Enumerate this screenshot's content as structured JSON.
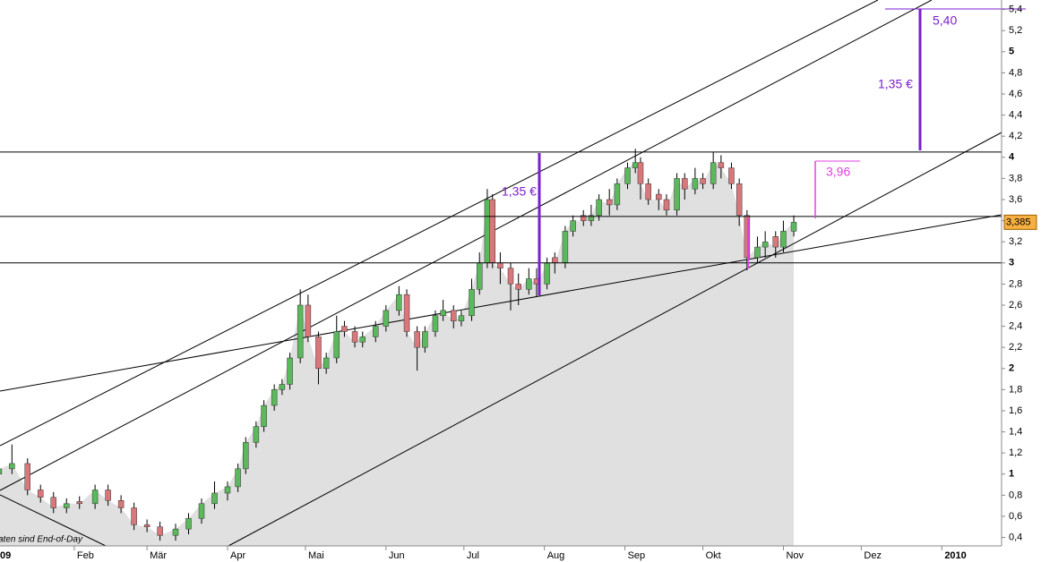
{
  "chart_data": {
    "type": "candlestick",
    "x": [
      2,
      7,
      13,
      18,
      23,
      28,
      33,
      39,
      44,
      49,
      54,
      59,
      64,
      70,
      75,
      80,
      85,
      90,
      94,
      97,
      101,
      104,
      108,
      111,
      114,
      118,
      121,
      125,
      128,
      132,
      135,
      139,
      142,
      147,
      151,
      156,
      159,
      163,
      166,
      170,
      173,
      177,
      180,
      184,
      187,
      190,
      192,
      195,
      199,
      202,
      206,
      209,
      213,
      216,
      220,
      223,
      227,
      230,
      233,
      237,
      240,
      244,
      247,
      249,
      252,
      256,
      259,
      263,
      266,
      270,
      273,
      277,
      280,
      284,
      287,
      290,
      294,
      297,
      301,
      304,
      308
    ],
    "open": [
      1.0,
      1.05,
      1.1,
      0.85,
      0.78,
      0.68,
      0.74,
      0.72,
      0.85,
      0.75,
      0.68,
      0.52,
      0.5,
      0.42,
      0.48,
      0.58,
      0.72,
      0.82,
      0.88,
      1.05,
      1.3,
      1.45,
      1.65,
      1.8,
      1.85,
      2.1,
      2.6,
      2.3,
      2.0,
      2.1,
      2.4,
      2.35,
      2.25,
      2.3,
      2.4,
      2.55,
      2.7,
      2.35,
      2.2,
      2.35,
      2.5,
      2.55,
      2.45,
      2.5,
      2.75,
      3.0,
      3.6,
      3.0,
      2.95,
      2.8,
      2.75,
      2.85,
      2.8,
      3.05,
      3.0,
      3.3,
      3.45,
      3.4,
      3.45,
      3.6,
      3.55,
      3.75,
      3.9,
      3.95,
      3.75,
      3.65,
      3.6,
      3.5,
      3.8,
      3.7,
      3.8,
      3.75,
      3.95,
      3.9,
      3.75,
      3.45,
      3.05,
      3.15,
      3.25,
      3.15,
      3.3
    ],
    "high": [
      1.1,
      1.28,
      1.15,
      0.9,
      0.83,
      0.77,
      0.79,
      0.9,
      0.9,
      0.8,
      0.73,
      0.57,
      0.55,
      0.53,
      0.63,
      0.77,
      0.93,
      0.93,
      1.1,
      1.35,
      1.5,
      1.7,
      1.85,
      1.9,
      2.15,
      2.75,
      2.7,
      2.35,
      2.15,
      2.5,
      2.45,
      2.4,
      2.35,
      2.45,
      2.6,
      2.78,
      2.75,
      2.4,
      2.4,
      2.55,
      2.65,
      2.6,
      2.55,
      2.85,
      3.1,
      3.7,
      3.65,
      3.1,
      3.0,
      2.9,
      2.95,
      2.95,
      3.05,
      3.1,
      3.35,
      3.45,
      3.5,
      3.55,
      3.65,
      3.7,
      3.8,
      3.95,
      4.08,
      4.0,
      3.8,
      3.7,
      3.65,
      3.85,
      3.85,
      3.9,
      3.85,
      4.05,
      4.02,
      3.95,
      3.8,
      3.5,
      3.25,
      3.3,
      3.3,
      3.4,
      3.45
    ],
    "low": [
      0.95,
      1.0,
      0.8,
      0.73,
      0.63,
      0.63,
      0.67,
      0.67,
      0.7,
      0.63,
      0.47,
      0.45,
      0.37,
      0.37,
      0.43,
      0.53,
      0.67,
      0.75,
      0.83,
      1.0,
      1.25,
      1.4,
      1.6,
      1.75,
      1.8,
      2.05,
      2.25,
      1.85,
      1.95,
      2.05,
      2.3,
      2.2,
      2.2,
      2.25,
      2.35,
      2.5,
      2.3,
      1.98,
      2.15,
      2.3,
      2.45,
      2.38,
      2.4,
      2.45,
      2.7,
      2.95,
      2.95,
      2.8,
      2.55,
      2.6,
      2.7,
      2.68,
      2.75,
      2.9,
      2.95,
      3.25,
      3.35,
      3.35,
      3.4,
      3.45,
      3.5,
      3.7,
      3.85,
      3.6,
      3.55,
      3.5,
      3.45,
      3.45,
      3.6,
      3.65,
      3.7,
      3.7,
      3.8,
      3.7,
      3.35,
      2.93,
      3.0,
      3.05,
      3.05,
      3.1,
      3.25
    ],
    "close": [
      1.05,
      1.1,
      0.85,
      0.78,
      0.68,
      0.72,
      0.72,
      0.85,
      0.75,
      0.68,
      0.52,
      0.5,
      0.42,
      0.48,
      0.58,
      0.72,
      0.82,
      0.88,
      1.05,
      1.3,
      1.45,
      1.65,
      1.8,
      1.85,
      2.1,
      2.6,
      2.3,
      2.0,
      2.1,
      2.35,
      2.35,
      2.25,
      2.3,
      2.4,
      2.55,
      2.7,
      2.35,
      2.2,
      2.35,
      2.5,
      2.55,
      2.45,
      2.5,
      2.75,
      3.0,
      3.6,
      3.0,
      2.95,
      2.8,
      2.75,
      2.85,
      2.8,
      3.0,
      3.0,
      3.3,
      3.4,
      3.4,
      3.45,
      3.6,
      3.55,
      3.75,
      3.9,
      3.95,
      3.75,
      3.6,
      3.6,
      3.5,
      3.8,
      3.7,
      3.8,
      3.75,
      3.95,
      3.9,
      3.75,
      3.45,
      3.05,
      3.15,
      3.2,
      3.15,
      3.3,
      3.385
    ],
    "up_color": "#5cb85c",
    "down_color": "#d9777b",
    "area_color": "#e0e0e0",
    "xlim": [
      2.4,
      388
    ],
    "xticks": [
      {
        "value": 0,
        "label": "09"
      },
      {
        "value": 31,
        "label": "Feb"
      },
      {
        "value": 59,
        "label": "Mär"
      },
      {
        "value": 90,
        "label": "Apr"
      },
      {
        "value": 120,
        "label": "Mai"
      },
      {
        "value": 151,
        "label": "Jun"
      },
      {
        "value": 181,
        "label": "Jul"
      },
      {
        "value": 212,
        "label": "Aug"
      },
      {
        "value": 243,
        "label": "Sep"
      },
      {
        "value": 273,
        "label": "Okt"
      },
      {
        "value": 304,
        "label": "Nov"
      },
      {
        "value": 334,
        "label": "Dez"
      },
      {
        "value": 365,
        "label": "2010"
      }
    ],
    "ylim": [
      0.32,
      5.49
    ],
    "yticks": [
      {
        "value": 0.4,
        "label": "0,4"
      },
      {
        "value": 0.6,
        "label": "0,6"
      },
      {
        "value": 0.8,
        "label": "0,8"
      },
      1,
      {
        "value": 1.2,
        "label": "1,2"
      },
      {
        "value": 1.4,
        "label": "1,4"
      },
      {
        "value": 1.6,
        "label": "1,6"
      },
      {
        "value": 1.8,
        "label": "1,8"
      },
      2,
      {
        "value": 2.2,
        "label": "2,2"
      },
      {
        "value": 2.4,
        "label": "2,4"
      },
      {
        "value": 2.6,
        "label": "2,6"
      },
      {
        "value": 2.8,
        "label": "2,8"
      },
      3,
      {
        "value": 3.2,
        "label": "3,2"
      },
      {
        "value": 3.4,
        "label": "3,4"
      },
      {
        "value": 3.6,
        "label": "3,6"
      },
      {
        "value": 3.8,
        "label": "3,8"
      },
      4,
      {
        "value": 4.2,
        "label": "4,2"
      },
      {
        "value": 4.4,
        "label": "4,4"
      },
      {
        "value": 4.6,
        "label": "4,6"
      },
      {
        "value": 4.8,
        "label": "4,8"
      },
      5,
      {
        "value": 5.2,
        "label": "5,2"
      },
      {
        "value": 5.4,
        "label": "5,4"
      }
    ],
    "hlines": [
      4.05,
      3.44,
      3.0
    ],
    "last_price": {
      "value": 3.385,
      "label": "3,385"
    },
    "annotations": [
      "1,35 €",
      "1,35 €",
      "5,40",
      "3,96"
    ],
    "footnote": "aten sind End-of-Day"
  }
}
